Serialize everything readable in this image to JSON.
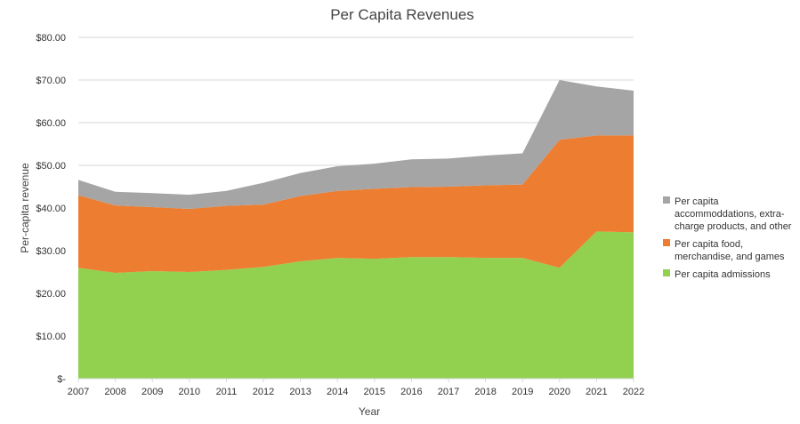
{
  "chart_data": {
    "type": "area",
    "stacked": true,
    "title": "Per Capita Revenues",
    "xlabel": "Year",
    "ylabel": "Per-capita revenue",
    "ylim": [
      0,
      80
    ],
    "y_ticks": [
      0,
      10,
      20,
      30,
      40,
      50,
      60,
      70,
      80
    ],
    "y_tick_labels": [
      "$-",
      "$10.00",
      "$20.00",
      "$30.00",
      "$40.00",
      "$50.00",
      "$60.00",
      "$70.00",
      "$80.00"
    ],
    "grid": true,
    "legend_position": "right",
    "categories": [
      "2007",
      "2008",
      "2009",
      "2010",
      "2011",
      "2012",
      "2013",
      "2014",
      "2015",
      "2016",
      "2017",
      "2018",
      "2019",
      "2020",
      "2021",
      "2022"
    ],
    "series": [
      {
        "name": "Per capita admissions",
        "legend_lines": [
          "Per capita admissions"
        ],
        "color": "#92d050",
        "values": [
          26.0,
          24.8,
          25.2,
          25.0,
          25.5,
          26.2,
          27.5,
          28.3,
          28.1,
          28.5,
          28.5,
          28.3,
          28.3,
          26.0,
          34.5,
          34.3
        ]
      },
      {
        "name": "Per capita food, merchandise, and games",
        "legend_lines": [
          "Per capita food,",
          "merchandise, and games"
        ],
        "color": "#ed7d31",
        "values": [
          17.0,
          15.8,
          15.0,
          14.8,
          15.0,
          14.6,
          15.3,
          15.7,
          16.4,
          16.4,
          16.5,
          17.0,
          17.2,
          30.0,
          22.5,
          22.7
        ]
      },
      {
        "name": "Per capita accommoddations, extra-charge products, and other",
        "legend_lines": [
          "Per capita",
          "accommoddations, extra-",
          "charge products, and other"
        ],
        "color": "#a5a5a5",
        "values": [
          3.6,
          3.2,
          3.3,
          3.3,
          3.5,
          5.1,
          5.4,
          5.8,
          5.9,
          6.5,
          6.6,
          7.0,
          7.3,
          14.0,
          11.5,
          10.5
        ]
      }
    ]
  }
}
